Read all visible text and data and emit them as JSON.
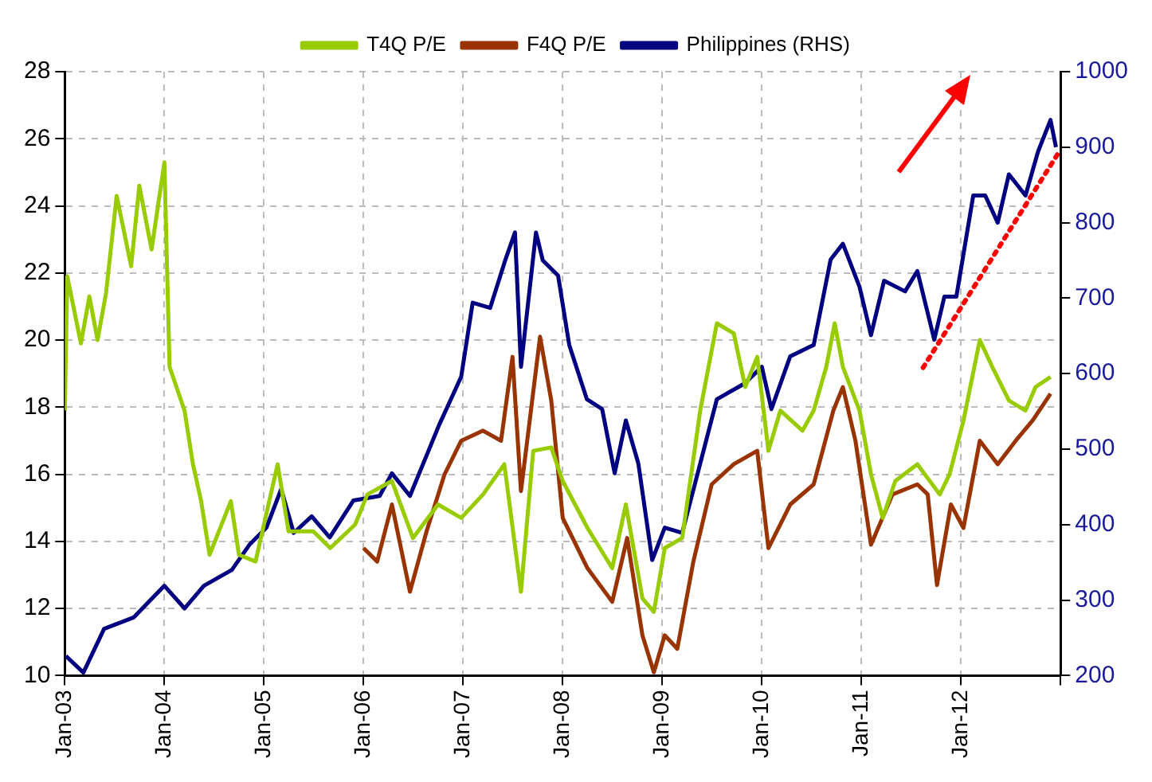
{
  "chart_data": {
    "type": "line",
    "legend": "top",
    "grid": true,
    "marker": "none",
    "line_style": "solid",
    "xlim": [
      "2003-01",
      "2013-01"
    ],
    "xticks": [
      {
        "value": "2003-01",
        "label": "Jan-03"
      },
      {
        "value": "2004-01",
        "label": "Jan-04"
      },
      {
        "value": "2005-01",
        "label": "Jan-05"
      },
      {
        "value": "2006-01",
        "label": "Jan-06"
      },
      {
        "value": "2007-01",
        "label": "Jan-07"
      },
      {
        "value": "2008-01",
        "label": "Jan-08"
      },
      {
        "value": "2009-01",
        "label": "Jan-09"
      },
      {
        "value": "2010-01",
        "label": "Jan-10"
      },
      {
        "value": "2011-01",
        "label": "Jan-11"
      },
      {
        "value": "2012-01",
        "label": "Jan-12"
      },
      {
        "value": "2013-01",
        "label": null
      }
    ],
    "ylim": [
      10,
      28
    ],
    "yticks": [
      10,
      12,
      14,
      16,
      18,
      20,
      22,
      24,
      26,
      28
    ],
    "y2lim": [
      200,
      1000
    ],
    "y2ticks": [
      200,
      300,
      400,
      500,
      600,
      700,
      800,
      900,
      1000
    ],
    "series": [
      {
        "name": "T4Q P/E",
        "color": "#99cc00",
        "x": [
          "2003-01-01",
          "2003-01-10",
          "2003-03-01",
          "2003-04-01",
          "2003-05-01",
          "2003-06-01",
          "2003-07-10",
          "2003-09-01",
          "2003-10-01",
          "2003-11-15",
          "2004-01-01",
          "2004-01-20",
          "2004-03-15",
          "2004-04-15",
          "2004-05-15",
          "2004-06-15",
          "2004-09-01",
          "2004-10-01",
          "2004-12-01",
          "2005-02-20",
          "2005-04-01",
          "2005-07-01",
          "2005-09-01",
          "2005-12-01",
          "2006-01-15",
          "2006-04-15",
          "2006-07-01",
          "2006-10-01",
          "2006-12-25",
          "2007-03-15",
          "2007-06-01",
          "2007-08-01",
          "2007-09-15",
          "2007-11-20",
          "2008-01-01",
          "2008-04-01",
          "2008-07-01",
          "2008-08-20",
          "2008-10-20",
          "2008-12-01",
          "2009-01-10",
          "2009-03-15",
          "2009-05-20",
          "2009-07-20",
          "2009-09-20",
          "2009-11-01",
          "2009-12-15",
          "2010-01-25",
          "2010-03-10",
          "2010-05-30",
          "2010-07-10",
          "2010-08-25",
          "2010-09-25",
          "2010-10-25",
          "2010-12-25",
          "2011-02-05",
          "2011-03-20",
          "2011-05-05",
          "2011-07-25",
          "2011-10-15",
          "2011-11-20",
          "2012-01-10",
          "2012-03-10",
          "2012-04-25",
          "2012-06-25",
          "2012-08-25",
          "2012-10-01",
          "2012-11-25"
        ],
        "values": [
          17.9,
          21.9,
          19.9,
          21.3,
          20.0,
          21.4,
          24.3,
          22.2,
          24.6,
          22.7,
          25.3,
          19.2,
          17.9,
          16.3,
          15.2,
          13.6,
          15.2,
          13.6,
          13.4,
          16.3,
          14.3,
          14.3,
          13.8,
          14.5,
          15.4,
          15.8,
          14.1,
          15.1,
          14.7,
          15.4,
          16.3,
          12.5,
          16.7,
          16.8,
          15.8,
          14.4,
          13.2,
          15.1,
          12.3,
          11.9,
          13.8,
          14.1,
          17.9,
          20.5,
          20.2,
          18.6,
          19.5,
          16.7,
          17.9,
          17.3,
          17.9,
          19.2,
          20.5,
          19.2,
          17.9,
          16.0,
          14.7,
          15.8,
          16.3,
          15.4,
          16.0,
          17.6,
          20.0,
          19.2,
          18.2,
          17.9,
          18.6,
          18.9
        ]
      },
      {
        "name": "F4Q P/E",
        "color": "#993300",
        "x": [
          "2006-01-01",
          "2006-02-20",
          "2006-04-15",
          "2006-06-20",
          "2006-08-20",
          "2006-10-25",
          "2006-12-25",
          "2007-03-15",
          "2007-05-20",
          "2007-07-01",
          "2007-08-01",
          "2007-10-10",
          "2007-11-20",
          "2008-01-01",
          "2008-04-01",
          "2008-07-01",
          "2008-08-25",
          "2008-10-20",
          "2008-12-01",
          "2009-01-10",
          "2009-02-25",
          "2009-04-25",
          "2009-07-01",
          "2009-09-20",
          "2009-12-15",
          "2010-01-25",
          "2010-04-15",
          "2010-07-10",
          "2010-09-20",
          "2010-10-25",
          "2010-12-10",
          "2011-02-05",
          "2011-04-25",
          "2011-07-25",
          "2011-09-01",
          "2011-10-05",
          "2011-11-25",
          "2012-01-10",
          "2012-03-10",
          "2012-05-15",
          "2012-07-20",
          "2012-09-20",
          "2012-11-25"
        ],
        "values": [
          13.8,
          13.4,
          15.1,
          12.5,
          14.3,
          16.0,
          17.0,
          17.3,
          17.0,
          19.5,
          15.5,
          20.1,
          18.2,
          14.7,
          13.2,
          12.2,
          14.1,
          11.2,
          10.1,
          11.2,
          10.8,
          13.4,
          15.7,
          16.3,
          16.7,
          13.8,
          15.1,
          15.7,
          17.9,
          18.6,
          17.0,
          13.9,
          15.4,
          15.7,
          15.4,
          12.7,
          15.1,
          14.4,
          17.0,
          16.3,
          17.0,
          17.6,
          18.4
        ]
      },
      {
        "name": "Philippines (RHS)",
        "color": "#000080",
        "axis": "y2",
        "x": [
          "2003-01-05",
          "2003-03-10",
          "2003-05-25",
          "2003-09-10",
          "2004-01-01",
          "2004-03-15",
          "2004-05-25",
          "2004-09-05",
          "2004-11-10",
          "2005-01-10",
          "2005-03-05",
          "2005-04-20",
          "2005-06-25",
          "2005-08-30",
          "2005-11-25",
          "2006-03-01",
          "2006-04-15",
          "2006-06-20",
          "2006-10-05",
          "2006-12-25",
          "2007-02-05",
          "2007-04-10",
          "2007-06-05",
          "2007-07-10",
          "2007-08-01",
          "2007-09-25",
          "2007-10-20",
          "2007-12-15",
          "2008-01-25",
          "2008-03-30",
          "2008-05-25",
          "2008-07-10",
          "2008-08-20",
          "2008-10-05",
          "2008-11-25",
          "2009-01-10",
          "2009-03-15",
          "2009-05-20",
          "2009-07-20",
          "2009-10-30",
          "2010-01-01",
          "2010-02-05",
          "2010-04-15",
          "2010-07-10",
          "2010-09-10",
          "2010-10-25",
          "2010-12-25",
          "2011-02-05",
          "2011-03-25",
          "2011-06-10",
          "2011-07-25",
          "2011-09-25",
          "2011-11-01",
          "2011-12-15",
          "2012-02-15",
          "2012-03-30",
          "2012-05-15",
          "2012-06-25",
          "2012-08-25",
          "2012-10-10",
          "2012-11-25",
          "2012-12-15"
        ],
        "values": [
          226,
          204,
          262,
          277,
          319,
          289,
          319,
          340,
          374,
          396,
          447,
          389,
          411,
          383,
          432,
          438,
          468,
          438,
          532,
          596,
          694,
          687,
          751,
          787,
          609,
          787,
          750,
          730,
          638,
          566,
          553,
          468,
          538,
          481,
          353,
          396,
          389,
          481,
          566,
          587,
          609,
          553,
          623,
          638,
          751,
          772,
          715,
          651,
          723,
          709,
          736,
          645,
          702,
          702,
          836,
          836,
          800,
          864,
          836,
          894,
          936,
          900
        ]
      },
      {
        "type": "line",
        "color": "#ff0000",
        "line_style": "dotted",
        "axis": "y2",
        "x": [
          "2011-08-15",
          "2013-01-01"
        ],
        "values": [
          608,
          897
        ]
      }
    ]
  }
}
